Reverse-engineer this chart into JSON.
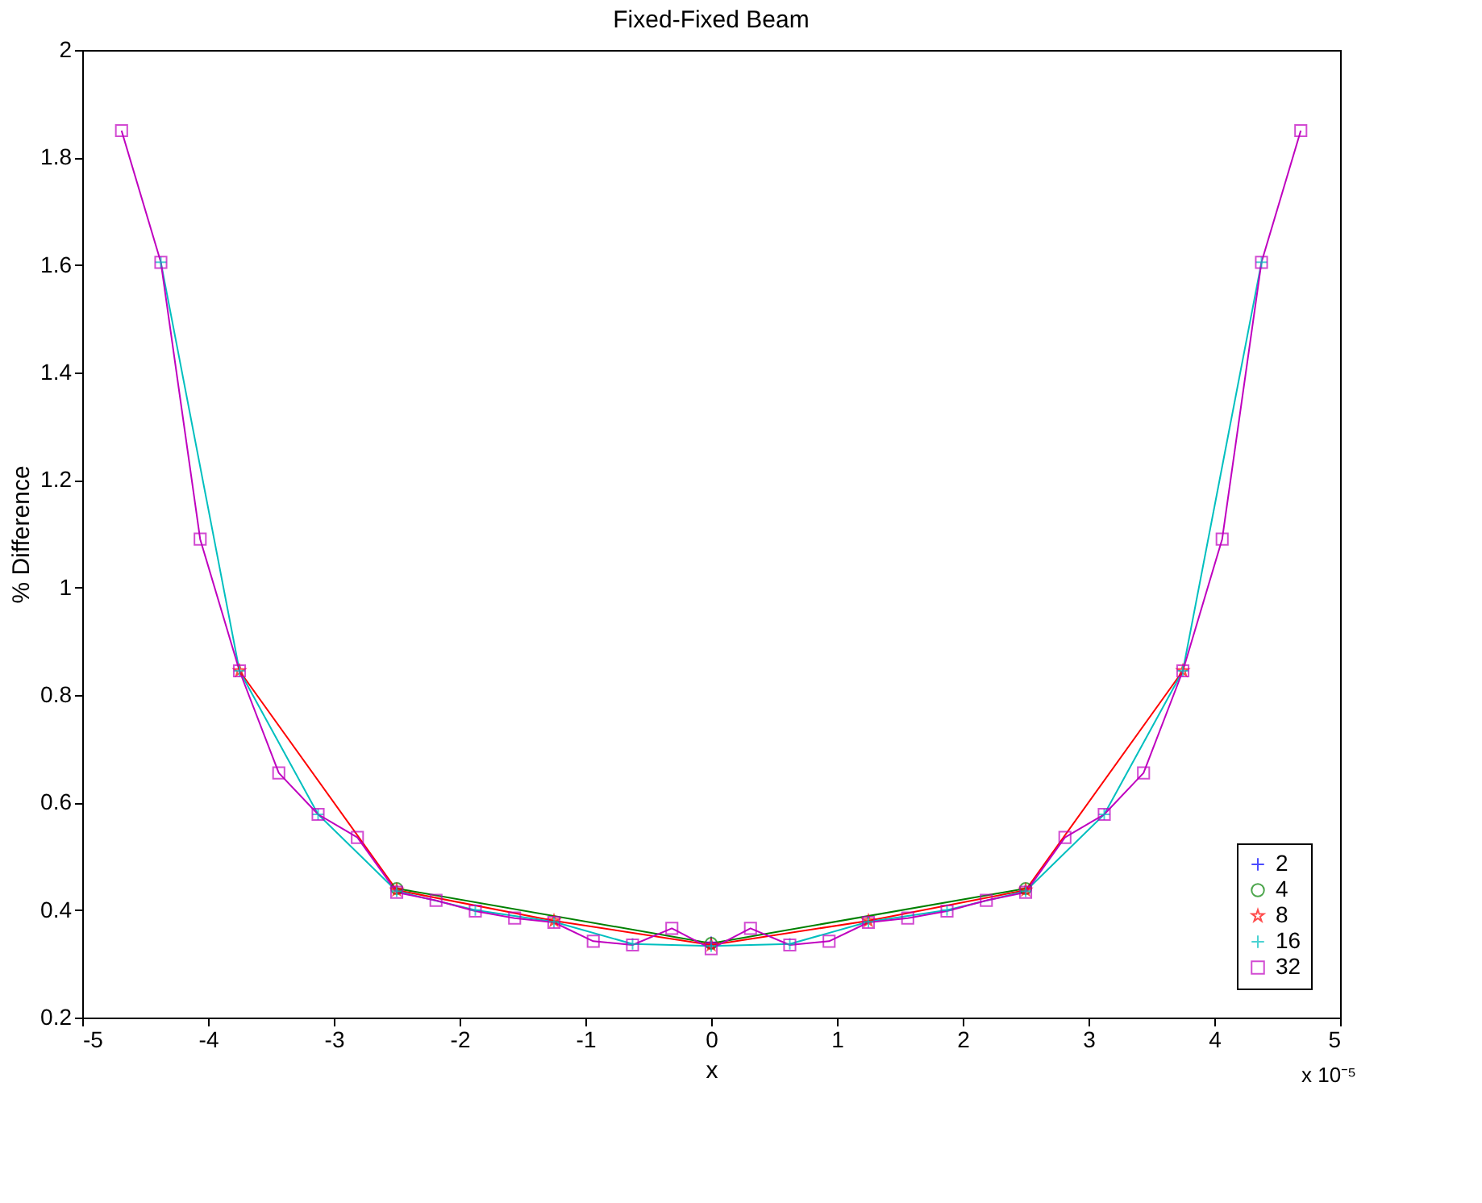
{
  "chart_data": {
    "type": "line",
    "title": "Fixed-Fixed Beam",
    "xlabel": "x",
    "ylabel": "% Difference",
    "annotations": [
      "x 10⁻⁵"
    ],
    "xlim": [
      -5,
      5
    ],
    "xticks": [
      -5,
      -4,
      -3,
      -2,
      -1,
      0,
      1,
      2,
      3,
      4,
      5
    ],
    "ylim": [
      0.2,
      2
    ],
    "yticks": [
      0.2,
      0.4,
      0.6,
      0.8,
      1,
      1.2,
      1.4,
      1.6,
      1.8,
      2
    ],
    "grid": false,
    "legend": "bottom right",
    "line_style": "solid",
    "series": [
      {
        "name": "2",
        "color": "#0000ff",
        "marker": "cross",
        "x": [
          0
        ],
        "values": [
          0.34
        ]
      },
      {
        "name": "4",
        "color": "#008000",
        "marker": "circle",
        "x": [
          -2.5,
          0,
          2.5
        ],
        "values": [
          0.44,
          0.338,
          0.44
        ]
      },
      {
        "name": "8",
        "color": "#ff0000",
        "marker": "star",
        "x": [
          -3.75,
          -2.5,
          -1.25,
          0,
          1.25,
          2.5,
          3.75
        ],
        "values": [
          0.845,
          0.437,
          0.38,
          0.335,
          0.38,
          0.437,
          0.845
        ]
      },
      {
        "name": "16",
        "color": "#00bfbf",
        "marker": "cross",
        "x": [
          -4.375,
          -3.75,
          -3.125,
          -2.5,
          -1.875,
          -1.25,
          -0.625,
          0,
          0.625,
          1.25,
          1.875,
          2.5,
          3.125,
          3.75,
          4.375
        ],
        "values": [
          1.605,
          0.845,
          0.578,
          0.435,
          0.4,
          0.378,
          0.337,
          0.333,
          0.337,
          0.378,
          0.4,
          0.435,
          0.578,
          0.845,
          1.605
        ]
      },
      {
        "name": "32",
        "color": "#bf00bf",
        "marker": "square",
        "x": [
          -4.6875,
          -4.375,
          -4.0625,
          -3.75,
          -3.4375,
          -3.125,
          -2.8125,
          -2.5,
          -2.1875,
          -1.875,
          -1.5625,
          -1.25,
          -0.9375,
          -0.625,
          -0.3125,
          0,
          0.3125,
          0.625,
          0.9375,
          1.25,
          1.5625,
          1.875,
          2.1875,
          2.5,
          2.8125,
          3.125,
          3.4375,
          3.75,
          4.0625,
          4.375,
          4.6875
        ],
        "values": [
          1.85,
          1.605,
          1.09,
          0.845,
          0.655,
          0.578,
          0.535,
          0.433,
          0.418,
          0.398,
          0.385,
          0.377,
          0.342,
          0.335,
          0.366,
          0.328,
          0.366,
          0.335,
          0.342,
          0.377,
          0.385,
          0.398,
          0.418,
          0.433,
          0.535,
          0.578,
          0.655,
          0.845,
          1.09,
          1.605,
          1.85
        ]
      }
    ]
  }
}
